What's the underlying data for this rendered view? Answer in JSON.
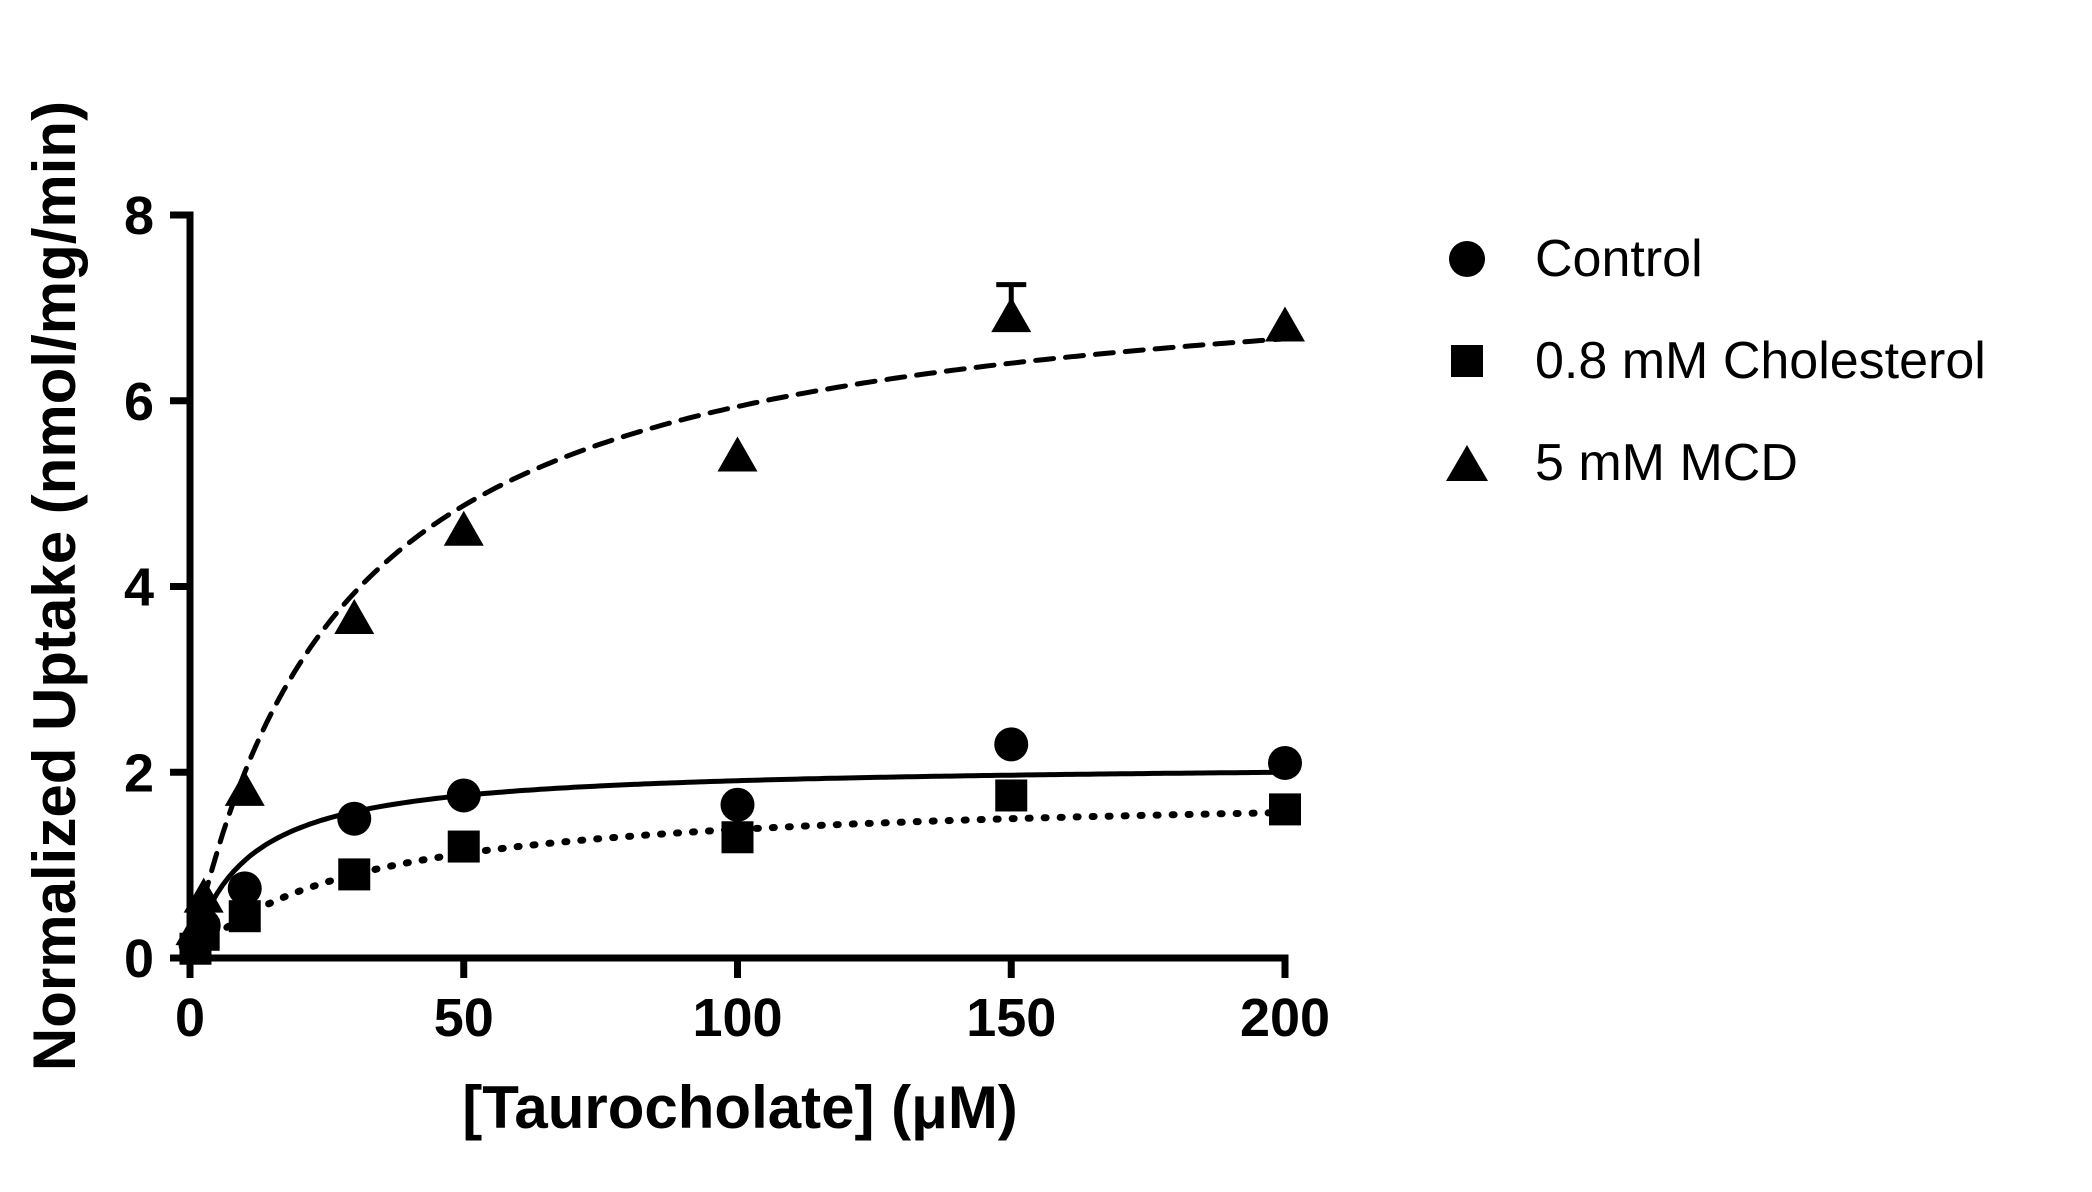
{
  "chart_data": {
    "type": "scatter",
    "title": "",
    "xlabel": "[Taurocholate] (μM)",
    "ylabel": "Normalized Uptake (nmol/mg/min)",
    "xlim": [
      0,
      200
    ],
    "ylim": [
      0,
      8
    ],
    "xticks": [
      0,
      50,
      100,
      150,
      200
    ],
    "yticks": [
      0,
      2,
      4,
      6,
      8
    ],
    "grid": false,
    "legend_position": "right",
    "color": "#000000",
    "series": [
      {
        "name": "Control",
        "marker": "circle",
        "line_style": "solid",
        "x": [
          1,
          2.5,
          10,
          30,
          50,
          100,
          150,
          200
        ],
        "y": [
          0.15,
          0.35,
          0.75,
          1.5,
          1.75,
          1.65,
          2.3,
          2.1
        ],
        "y_err": [
          0,
          0,
          0,
          0,
          0,
          0,
          0,
          0
        ],
        "fit": {
          "model": "michaelis-menten",
          "vmax": 2.1,
          "km": 10
        }
      },
      {
        "name": "0.8 mM Cholesterol",
        "marker": "square",
        "line_style": "dotted",
        "x": [
          1,
          2.5,
          10,
          30,
          50,
          100,
          150,
          200
        ],
        "y": [
          0.1,
          0.25,
          0.45,
          0.9,
          1.2,
          1.3,
          1.75,
          1.6
        ],
        "y_err": [
          0,
          0,
          0,
          0,
          0,
          0,
          0,
          0
        ],
        "fit": {
          "model": "michaelis-menten",
          "vmax": 1.8,
          "km": 30
        }
      },
      {
        "name": "5 mM MCD",
        "marker": "triangle",
        "line_style": "dashed",
        "x": [
          1,
          2.5,
          10,
          30,
          50,
          100,
          150,
          200
        ],
        "y": [
          0.3,
          0.65,
          1.8,
          3.65,
          4.6,
          5.4,
          6.9,
          6.8
        ],
        "y_err": [
          0,
          0,
          0,
          0,
          0,
          0,
          0.35,
          0
        ],
        "fit": {
          "model": "michaelis-menten",
          "vmax": 7.6,
          "km": 28
        }
      }
    ]
  }
}
